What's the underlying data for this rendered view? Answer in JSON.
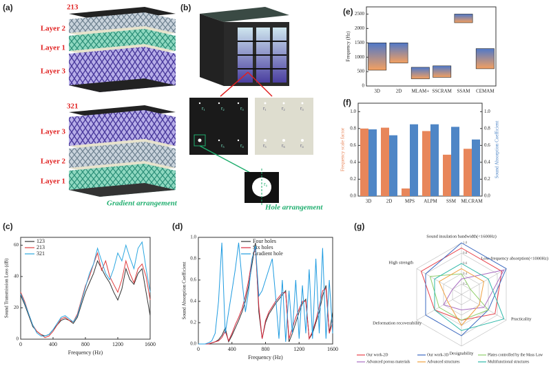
{
  "panel_labels": [
    "(a)",
    "(b)",
    "(c)",
    "(d)",
    "(e)",
    "(f)",
    "(g)"
  ],
  "panel_a": {
    "stacks": [
      {
        "name": "213",
        "layers": [
          "Layer 2",
          "Layer 1",
          "Layer 3"
        ]
      },
      {
        "name": "321",
        "layers": [
          "Layer 3",
          "Layer 2",
          "Layer 1"
        ]
      }
    ],
    "caption": "Gradient arrangement"
  },
  "panel_b": {
    "left_plate": [
      "r₁",
      "r₂",
      "r₃",
      "r₅",
      "r₄"
    ],
    "right_plate": [
      "r₁",
      "r₂",
      "r₃",
      "r₅",
      "r₆",
      "r₄"
    ],
    "zoom_label": "r₀",
    "caption": "Hole arrangement"
  },
  "chart_data": [
    {
      "type": "line",
      "x_label": "Frequency (Hz)",
      "y_label": "Sound Transmission Loss (dB)",
      "x": [
        0,
        50,
        100,
        150,
        200,
        250,
        300,
        350,
        400,
        450,
        500,
        550,
        600,
        650,
        700,
        750,
        800,
        850,
        900,
        950,
        1000,
        1050,
        1100,
        1150,
        1200,
        1250,
        1300,
        1350,
        1400,
        1450,
        1500,
        1550,
        1600
      ],
      "series": [
        {
          "name": "123",
          "color": "#333333",
          "values": [
            28,
            22,
            15,
            8,
            5,
            3,
            2,
            3,
            6,
            9,
            12,
            13,
            12,
            10,
            14,
            22,
            30,
            36,
            42,
            50,
            45,
            40,
            36,
            30,
            25,
            32,
            45,
            38,
            35,
            42,
            45,
            30,
            15
          ]
        },
        {
          "name": "213",
          "color": "#e03c3c",
          "values": [
            30,
            24,
            16,
            9,
            5,
            3,
            1,
            2,
            5,
            9,
            13,
            14,
            12,
            11,
            16,
            25,
            34,
            40,
            48,
            55,
            44,
            50,
            40,
            35,
            30,
            38,
            50,
            42,
            36,
            45,
            48,
            40,
            25
          ]
        },
        {
          "name": "321",
          "color": "#2aa6e0",
          "values": [
            29,
            23,
            16,
            9,
            4,
            2,
            2,
            3,
            6,
            10,
            14,
            15,
            13,
            11,
            15,
            24,
            33,
            42,
            48,
            58,
            50,
            42,
            38,
            45,
            55,
            50,
            60,
            52,
            45,
            58,
            62,
            45,
            30
          ]
        }
      ],
      "xlim": [
        0,
        1600
      ],
      "xticks": [
        0,
        400,
        800,
        1200,
        1600
      ],
      "ylim": [
        0,
        65
      ],
      "yticks": [
        0,
        20,
        40,
        60
      ]
    },
    {
      "type": "line",
      "x_label": "Frequency (Hz)",
      "y_label": "Sound Absorption Coefficient",
      "x": [
        0,
        40,
        80,
        120,
        160,
        200,
        240,
        280,
        320,
        360,
        400,
        440,
        480,
        520,
        560,
        600,
        640,
        680,
        720,
        760,
        800,
        840,
        880,
        920,
        960,
        1000,
        1040,
        1080,
        1120,
        1160,
        1200,
        1240,
        1280,
        1320,
        1360,
        1400,
        1440,
        1480,
        1520,
        1560,
        1600
      ],
      "series": [
        {
          "name": "Four holes",
          "color": "#333333",
          "values": [
            0,
            0,
            0,
            0,
            0.01,
            0.02,
            0.04,
            0.08,
            0.15,
            0.02,
            0.08,
            0.15,
            0.22,
            0.3,
            0.4,
            0.55,
            0.75,
            0.95,
            0.3,
            0.05,
            0.2,
            0.28,
            0.33,
            0.38,
            0.42,
            0.46,
            0.5,
            0.02,
            0.1,
            0.2,
            0.3,
            0.38,
            0.42,
            0.05,
            0.1,
            0.2,
            0.3,
            0.45,
            0.55,
            0.1,
            0.3
          ]
        },
        {
          "name": "Six holes",
          "color": "#d8283c",
          "values": [
            0,
            0,
            0,
            0,
            0.01,
            0.02,
            0.03,
            0.06,
            0.12,
            0.03,
            0.1,
            0.18,
            0.25,
            0.33,
            0.45,
            0.6,
            0.8,
            0.9,
            0.35,
            0.05,
            0.22,
            0.3,
            0.35,
            0.4,
            0.44,
            0.48,
            0.48,
            0.05,
            0.15,
            0.25,
            0.33,
            0.4,
            0.4,
            0.05,
            0.12,
            0.22,
            0.35,
            0.5,
            0.52,
            0.1,
            0.2
          ]
        },
        {
          "name": "Gradient hole",
          "color": "#1e9be0",
          "values": [
            0,
            0,
            0,
            0.01,
            0.03,
            0.1,
            0.4,
            0.95,
            0.1,
            0.3,
            0.5,
            0.7,
            0.95,
            0.6,
            0.3,
            0.5,
            0.8,
            0.92,
            0.45,
            0.5,
            0.6,
            0.7,
            0.8,
            0.45,
            0.05,
            0.6,
            0.02,
            0.5,
            0.1,
            0.6,
            0.05,
            0.55,
            0.1,
            0.7,
            0.05,
            0.8,
            0.1,
            0.9,
            0.05,
            0.6,
            0.1
          ]
        }
      ],
      "xlim": [
        0,
        1600
      ],
      "xticks": [
        0,
        400,
        800,
        1200,
        1600
      ],
      "ylim": [
        0,
        1
      ],
      "yticks": [
        {
          "value": 0,
          "label": "0.0"
        },
        0.2,
        0.4,
        0.6,
        0.8,
        {
          "value": 1,
          "label": "1.0"
        }
      ]
    },
    {
      "type": "range",
      "y_label": "Frequency (Hz)",
      "categories": [
        "3D",
        "2D",
        "MLAM+",
        "SSCRAM",
        "SSAM",
        "CEMAM"
      ],
      "ranges": [
        [
          550,
          1500
        ],
        [
          800,
          1500
        ],
        [
          250,
          650
        ],
        [
          300,
          700
        ],
        [
          2200,
          2500
        ],
        [
          600,
          1300
        ]
      ],
      "colors": [
        "#f4a060",
        "#4f78c8"
      ],
      "ylim": [
        0,
        2750
      ],
      "yticks": [
        0,
        500,
        1000,
        1500,
        2000,
        2500
      ]
    },
    {
      "type": "bar",
      "y_label": "Frequency scale factor",
      "y2_label": "Sound Absorption Coefficient",
      "categories": [
        "3D",
        "2D",
        "MPS",
        "ALPM",
        "SSM",
        "MLCRAM"
      ],
      "series": [
        {
          "color": "#e8865a",
          "values": [
            0.8,
            0.81,
            0.09,
            0.77,
            0.49,
            0.56
          ]
        },
        {
          "color": "#4f86c6",
          "axis": "y2",
          "values": [
            0.79,
            0.72,
            0.85,
            0.85,
            0.82,
            0.67
          ]
        }
      ],
      "ylim": [
        0,
        1.1
      ],
      "yticks": [
        {
          "value": 0,
          "label": "0.0"
        },
        0.2,
        0.4,
        0.6,
        0.8,
        {
          "value": 1,
          "label": "1.0"
        }
      ],
      "y2lim": [
        0,
        1.1
      ],
      "y2ticks": [
        {
          "value": 0,
          "label": "0.0"
        },
        0.2,
        0.4,
        0.6,
        0.8,
        {
          "value": 1,
          "label": "1.0"
        }
      ]
    },
    {
      "type": "radar",
      "axes": [
        "Sound insulation bandwidth(<1600Hz)",
        "Low-frequency absorption(<1000Hz)",
        "Practicality",
        "Designability",
        "Deformation recoverability",
        "High strength"
      ],
      "rlim": [
        0,
        1
      ],
      "rticks": [
        0.2,
        0.4,
        0.6,
        0.8,
        {
          "value": 1,
          "label": "1.0"
        }
      ],
      "series": [
        {
          "name": "Our work-2D",
          "color": "#e8404a",
          "values": [
            0.9,
            0.9,
            0.75,
            0.5,
            0.6,
            0.9
          ]
        },
        {
          "name": "Our work-3D",
          "color": "#3a68c0",
          "values": [
            1,
            1,
            0.6,
            0.8,
            0.8,
            0.8
          ]
        },
        {
          "name": "Plates controlled by the Mass Law",
          "color": "#8fce6a",
          "values": [
            0.4,
            0.2,
            0.6,
            0.5,
            0.5,
            0.7
          ]
        },
        {
          "name": "Advanced porous materials",
          "color": "#a86cc0",
          "values": [
            0.3,
            0.95,
            0.5,
            0.3,
            0.4,
            0.2
          ]
        },
        {
          "name": "Advanced structures",
          "color": "#f0a040",
          "values": [
            0.5,
            0.5,
            0.4,
            0.6,
            0.3,
            0.5
          ]
        },
        {
          "name": "Multifunctional structures",
          "color": "#2cb8a8",
          "values": [
            0.6,
            0.6,
            0.95,
            0.7,
            0.6,
            0.6
          ]
        }
      ]
    }
  ]
}
